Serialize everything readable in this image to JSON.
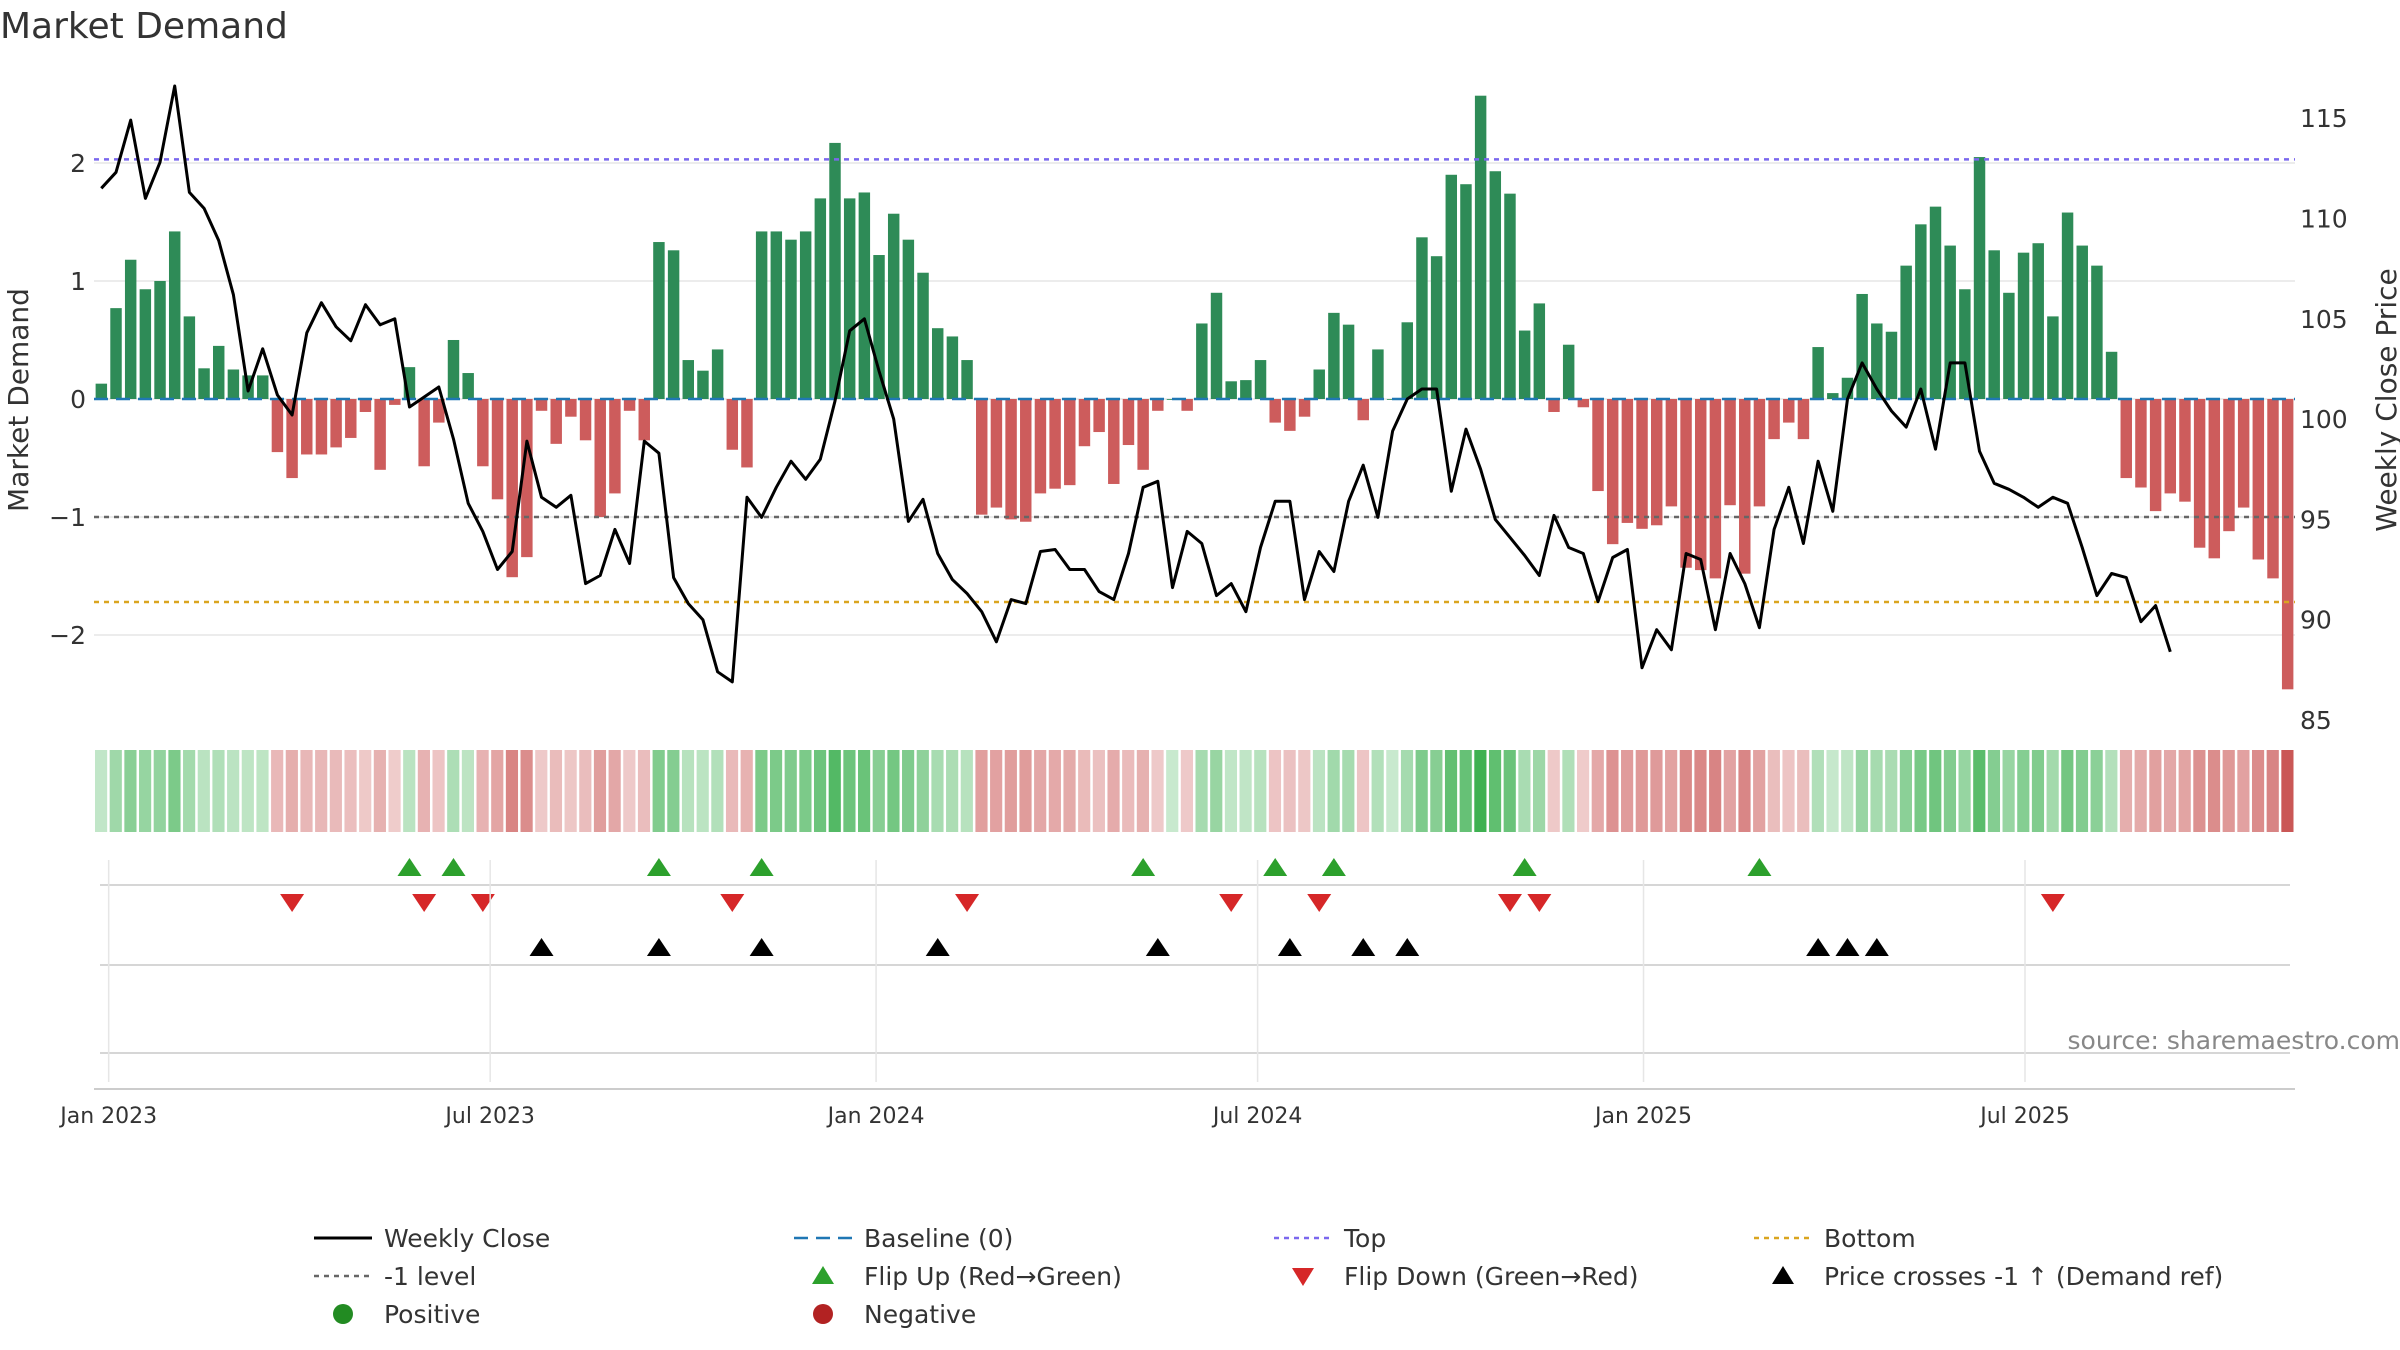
{
  "chart_data": {
    "type": "bar+line",
    "title": "Market Demand",
    "ylabel_left": "Market Demand",
    "ylabel_right": "Weekly Close Price",
    "source": "source: sharemaestro.com",
    "ylim_left": [
      -2.72,
      2.72
    ],
    "ylim_right": [
      85,
      117
    ],
    "yticks_left": [
      2,
      1,
      0,
      -1,
      -2
    ],
    "yticks_left_labels": [
      "2",
      "1",
      "0",
      "−1",
      "−2"
    ],
    "yticks_right": [
      115,
      110,
      105,
      100,
      95,
      90,
      85
    ],
    "yticks_right_labels": [
      "115",
      "110",
      "105",
      "100",
      "95",
      "90",
      "85"
    ],
    "x_start_date": "2022-12-26",
    "x_end_date": "2025-10-06",
    "xticks": [
      {
        "label": "Jan 2023",
        "week": 1
      },
      {
        "label": "Jul 2023",
        "week": 27
      },
      {
        "label": "Jan 2024",
        "week": 53.3
      },
      {
        "label": "Jul 2024",
        "week": 79.3
      },
      {
        "label": "Jan 2025",
        "week": 105.6
      },
      {
        "label": "Jul 2025",
        "week": 131.6
      }
    ],
    "reference_lines": {
      "top": 2.03,
      "minus_one": -1.0,
      "bottom": -1.72,
      "baseline": 0
    },
    "colors": {
      "positive_bar": "#2e8b57",
      "negative_bar": "#cd5c5c",
      "close_line": "#000000",
      "baseline": "#1f77b4",
      "top": "#7b68ee",
      "minus_one": "#666666",
      "bottom": "#daa520",
      "flip_up": "#2ca02c",
      "flip_down": "#d62728",
      "price_cross": "#000000",
      "positive_dot": "#228b22",
      "negative_dot": "#b22222",
      "grid": "#e6e6e6",
      "axis_text": "#333333",
      "source_text": "#888888"
    },
    "series": [
      {
        "name": "Market Demand",
        "type": "bar",
        "values": [
          0.13,
          0.77,
          1.18,
          0.93,
          1.0,
          1.42,
          0.7,
          0.26,
          0.45,
          0.25,
          0.2,
          0.2,
          -0.45,
          -0.67,
          -0.47,
          -0.47,
          -0.41,
          -0.33,
          -0.11,
          -0.6,
          -0.05,
          0.27,
          -0.57,
          -0.2,
          0.5,
          0.22,
          -0.57,
          -0.85,
          -1.51,
          -1.34,
          -0.1,
          -0.38,
          -0.15,
          -0.35,
          -1.0,
          -0.8,
          -0.1,
          -0.35,
          1.33,
          1.26,
          0.33,
          0.24,
          0.42,
          -0.43,
          -0.58,
          1.42,
          1.42,
          1.35,
          1.42,
          1.7,
          2.17,
          1.7,
          1.75,
          1.22,
          1.57,
          1.35,
          1.07,
          0.6,
          0.53,
          0.33,
          -0.98,
          -0.92,
          -1.02,
          -1.04,
          -0.8,
          -0.76,
          -0.73,
          -0.4,
          -0.28,
          -0.72,
          -0.39,
          -0.6,
          -0.1,
          0.0,
          -0.1,
          0.64,
          0.9,
          0.15,
          0.16,
          0.33,
          -0.2,
          -0.27,
          -0.15,
          0.25,
          0.73,
          0.63,
          -0.18,
          0.42,
          0.0,
          0.65,
          1.37,
          1.21,
          1.9,
          1.82,
          2.57,
          1.93,
          1.74,
          0.58,
          0.81,
          -0.11,
          0.46,
          -0.07,
          -0.78,
          -1.23,
          -1.05,
          -1.1,
          -1.07,
          -0.91,
          -1.43,
          -1.45,
          -1.52,
          -0.9,
          -1.48,
          -0.91,
          -0.34,
          -0.2,
          -0.34,
          0.44,
          0.05,
          0.18,
          0.89,
          0.64,
          0.57,
          1.13,
          1.48,
          1.63,
          1.3,
          0.93,
          2.05,
          1.26,
          0.9,
          1.24,
          1.32,
          0.7,
          1.58,
          1.3,
          1.13,
          0.4,
          -0.67,
          -0.75,
          -0.95,
          -0.8,
          -0.87,
          -1.26,
          -1.35,
          -1.12,
          -0.92,
          -1.36,
          -1.52,
          -2.46
        ]
      },
      {
        "name": "Weekly Close",
        "type": "line",
        "values": [
          111.5,
          112.3,
          114.9,
          111.0,
          112.8,
          116.6,
          111.3,
          110.5,
          108.9,
          106.2,
          101.4,
          103.5,
          101.2,
          100.2,
          104.3,
          105.8,
          104.6,
          103.9,
          105.7,
          104.7,
          105.0,
          100.6,
          101.1,
          101.6,
          99.0,
          95.8,
          94.4,
          92.5,
          93.4,
          98.9,
          96.1,
          95.6,
          96.2,
          91.8,
          92.2,
          94.5,
          92.8,
          98.9,
          98.3,
          92.1,
          90.8,
          90.0,
          87.4,
          86.9,
          96.1,
          95.1,
          96.6,
          97.9,
          97.0,
          98.0,
          100.9,
          104.4,
          105.0,
          102.4,
          100.0,
          94.9,
          96.0,
          93.3,
          92.0,
          91.3,
          90.4,
          88.9,
          91.0,
          90.8,
          93.4,
          93.5,
          92.5,
          92.5,
          91.4,
          91.0,
          93.3,
          96.6,
          96.9,
          91.6,
          94.4,
          93.8,
          91.2,
          91.8,
          90.4,
          93.6,
          95.9,
          95.9,
          91.0,
          93.4,
          92.4,
          95.9,
          97.7,
          95.1,
          99.4,
          101.0,
          101.5,
          101.5,
          96.4,
          99.5,
          97.5,
          95.0,
          94.1,
          93.2,
          92.2,
          95.2,
          93.6,
          93.3,
          90.9,
          93.1,
          93.5,
          87.6,
          89.5,
          88.5,
          93.3,
          93.0,
          89.5,
          93.3,
          91.8,
          89.6,
          94.5,
          96.6,
          93.8,
          97.9,
          95.4,
          101.0,
          102.8,
          101.5,
          100.4,
          99.6,
          101.5,
          98.5,
          102.8,
          102.8,
          98.4,
          96.8,
          96.5,
          96.1,
          95.6,
          96.1,
          95.8,
          93.6,
          91.2,
          92.3,
          92.1,
          89.9,
          90.7,
          88.4
        ]
      }
    ],
    "strength_strip": {
      "name": "Demand strength strip",
      "source": "Market Demand"
    },
    "events": {
      "flip_up_weeks": [
        21,
        24,
        38,
        45,
        71,
        80,
        84,
        97,
        113
      ],
      "flip_down_weeks": [
        13,
        22,
        26,
        43,
        59,
        77,
        83,
        96,
        98,
        133
      ],
      "price_cross_weeks": [
        30,
        38,
        45,
        57,
        72,
        81,
        86,
        89,
        117,
        119,
        121
      ]
    },
    "legend": [
      {
        "label": "Weekly Close",
        "marker": "line-solid"
      },
      {
        "label": "Baseline (0)",
        "marker": "line-dash"
      },
      {
        "label": "Top",
        "marker": "line-dot-top"
      },
      {
        "label": "Bottom",
        "marker": "line-dot-bottom"
      },
      {
        "label": "-1 level",
        "marker": "line-dot-grey"
      },
      {
        "label": "Flip Up (Red→Green)",
        "marker": "triangle-up-green"
      },
      {
        "label": "Flip Down (Green→Red)",
        "marker": "triangle-down-red"
      },
      {
        "label": "Price crosses -1 ↑ (Demand ref)",
        "marker": "triangle-up-black"
      },
      {
        "label": "Positive",
        "marker": "dot-green"
      },
      {
        "label": "Negative",
        "marker": "dot-red"
      }
    ]
  }
}
